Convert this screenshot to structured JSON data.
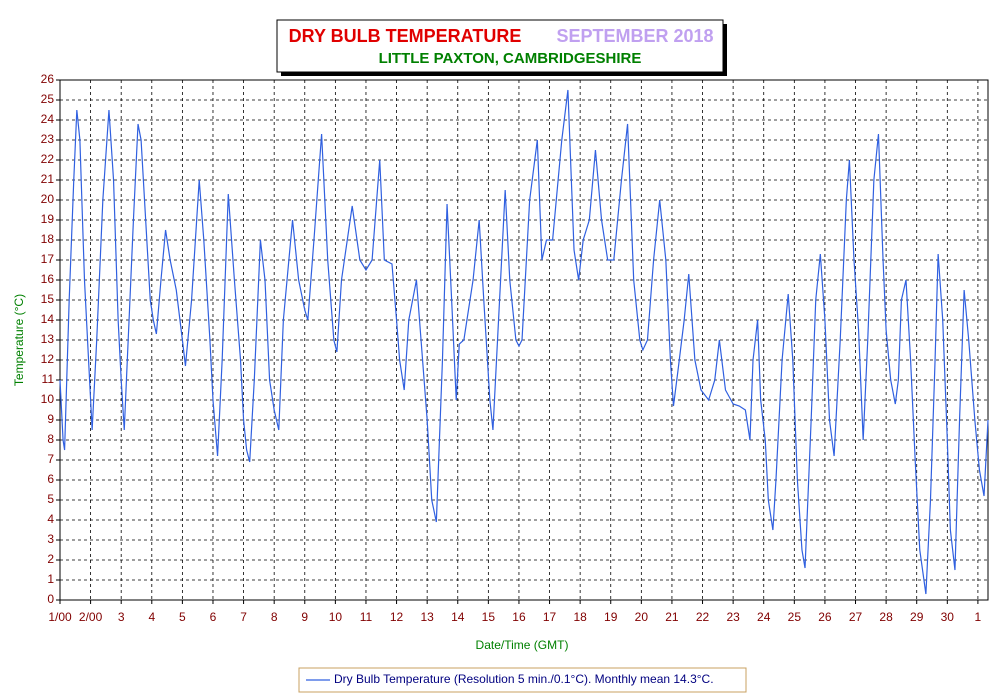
{
  "chart_data": {
    "type": "line",
    "title": "DRY BULB TEMPERATURE",
    "title_color": "#e00000",
    "title_date": "SEPTEMBER 2018",
    "title_date_color": "#c0a0f0",
    "subtitle": "LITTLE PAXTON, CAMBRIDGESHIRE",
    "subtitle_color": "#008000",
    "xlabel": "Date/Time (GMT)",
    "ylabel": "Temperature (°C)",
    "grid": true,
    "legend": "bottom",
    "xlim": [
      0,
      30.33
    ],
    "ylim": [
      0,
      26
    ],
    "yticks": [
      0,
      1,
      2,
      3,
      4,
      5,
      6,
      7,
      8,
      9,
      10,
      11,
      12,
      13,
      14,
      15,
      16,
      17,
      18,
      19,
      20,
      21,
      22,
      23,
      24,
      25,
      26
    ],
    "xticks": [
      {
        "value": 0,
        "label": "1/00"
      },
      {
        "value": 1,
        "label": "2/00"
      },
      {
        "value": 2,
        "label": "3"
      },
      {
        "value": 3,
        "label": "4"
      },
      {
        "value": 4,
        "label": "5"
      },
      {
        "value": 5,
        "label": "6"
      },
      {
        "value": 6,
        "label": "7"
      },
      {
        "value": 7,
        "label": "8"
      },
      {
        "value": 8,
        "label": "9"
      },
      {
        "value": 9,
        "label": "10"
      },
      {
        "value": 10,
        "label": "11"
      },
      {
        "value": 11,
        "label": "12"
      },
      {
        "value": 12,
        "label": "13"
      },
      {
        "value": 13,
        "label": "14"
      },
      {
        "value": 14,
        "label": "15"
      },
      {
        "value": 15,
        "label": "16"
      },
      {
        "value": 16,
        "label": "17"
      },
      {
        "value": 17,
        "label": "18"
      },
      {
        "value": 18,
        "label": "19"
      },
      {
        "value": 19,
        "label": "20"
      },
      {
        "value": 20,
        "label": "21"
      },
      {
        "value": 21,
        "label": "22"
      },
      {
        "value": 22,
        "label": "23"
      },
      {
        "value": 23,
        "label": "24"
      },
      {
        "value": 24,
        "label": "25"
      },
      {
        "value": 25,
        "label": "26"
      },
      {
        "value": 26,
        "label": "27"
      },
      {
        "value": 27,
        "label": "28"
      },
      {
        "value": 28,
        "label": "29"
      },
      {
        "value": 29,
        "label": "30"
      },
      {
        "value": 30,
        "label": "1"
      }
    ],
    "x": [
      0,
      0.1,
      0.15,
      0.3,
      0.45,
      0.55,
      0.65,
      0.8,
      0.95,
      1.0,
      1.05,
      1.2,
      1.4,
      1.6,
      1.75,
      1.9,
      2.0,
      2.1,
      2.2,
      2.4,
      2.55,
      2.65,
      2.8,
      2.95,
      3.05,
      3.15,
      3.3,
      3.45,
      3.6,
      3.8,
      4.0,
      4.1,
      4.3,
      4.55,
      4.7,
      4.9,
      5.0,
      5.15,
      5.3,
      5.5,
      5.7,
      5.9,
      6.0,
      6.1,
      6.2,
      6.35,
      6.55,
      6.7,
      6.85,
      7.0,
      7.15,
      7.3,
      7.6,
      7.8,
      8.0,
      8.1,
      8.3,
      8.55,
      8.75,
      8.95,
      9.05,
      9.2,
      9.55,
      9.8,
      10.0,
      10.2,
      10.45,
      10.6,
      10.85,
      11.0,
      11.1,
      11.25,
      11.4,
      11.65,
      11.8,
      12.0,
      12.15,
      12.3,
      12.5,
      12.65,
      12.8,
      12.95,
      13.05,
      13.2,
      13.5,
      13.7,
      13.85,
      14.05,
      14.15,
      14.3,
      14.55,
      14.7,
      14.9,
      15.0,
      15.1,
      15.35,
      15.6,
      15.75,
      15.9,
      16.1,
      16.4,
      16.6,
      16.8,
      16.95,
      17.1,
      17.3,
      17.5,
      17.7,
      17.9,
      18.1,
      18.35,
      18.55,
      18.75,
      18.95,
      19.05,
      19.2,
      19.4,
      19.6,
      19.8,
      19.95,
      20.05,
      20.2,
      20.4,
      20.55,
      20.75,
      20.95,
      21.2,
      21.4,
      21.55,
      21.75,
      22.0,
      22.2,
      22.4,
      22.55,
      22.65,
      22.8,
      22.9,
      23.05,
      23.15,
      23.3,
      23.4,
      23.6,
      23.8,
      23.95,
      24.1,
      24.25,
      24.35,
      24.55,
      24.7,
      24.85,
      25.0,
      25.15,
      25.3,
      25.5,
      25.7,
      25.8,
      25.95,
      26.1,
      26.25,
      26.4,
      26.6,
      26.75,
      26.9,
      27.0,
      27.15,
      27.3,
      27.4,
      27.5,
      27.65,
      27.8,
      27.95,
      28.1,
      28.3,
      28.45,
      28.6,
      28.7,
      28.85,
      29.0,
      29.1,
      29.25,
      29.4,
      29.55,
      29.7,
      29.9,
      30.05,
      30.2,
      30.33
    ],
    "series": [
      {
        "name": "Dry Bulb Temperature (Resolution 5 min./0.1°C). Monthly mean 14.3°C.",
        "color": "#3060e0",
        "values": [
          11,
          8,
          7.5,
          15,
          21,
          24.5,
          23,
          16,
          11.5,
          10,
          8.5,
          13,
          20,
          24.5,
          21,
          14,
          11,
          8.5,
          12,
          19,
          23.8,
          23,
          19,
          15,
          14,
          13.3,
          16,
          18.5,
          17,
          15.5,
          13,
          11.7,
          15,
          21,
          18,
          13,
          10,
          7.2,
          12,
          20.3,
          16,
          12,
          9,
          7.5,
          6.9,
          11,
          18,
          16,
          11,
          9.5,
          8.5,
          14,
          19,
          16,
          14.5,
          14,
          18,
          23.3,
          17,
          13,
          12.4,
          16,
          19.7,
          17,
          16.5,
          17,
          22,
          17,
          16.8,
          14,
          12,
          10.5,
          14,
          16,
          13,
          9,
          5,
          3.9,
          12,
          19.8,
          15,
          10,
          12.8,
          13,
          16,
          19,
          15,
          10,
          8.5,
          13,
          20.5,
          16,
          13,
          12.7,
          13,
          20,
          23,
          17,
          18,
          18,
          23,
          25.5,
          17.5,
          16,
          18,
          19,
          22.5,
          19,
          17,
          17,
          21,
          23.8,
          16,
          13,
          12.5,
          13,
          17,
          20,
          17,
          12,
          9.7,
          11.5,
          14,
          16.3,
          12,
          10.5,
          10,
          11,
          13,
          10.5,
          9.8,
          9.7,
          9.5,
          8,
          12,
          14,
          10,
          8,
          5,
          3.5,
          6,
          12,
          15.3,
          12,
          6,
          2.5,
          1.6,
          9,
          15,
          17.3,
          14,
          9,
          7.2,
          13,
          20,
          22,
          17,
          13.5,
          8,
          13,
          21,
          23.3,
          17,
          13.5,
          11,
          9.8,
          11,
          15,
          16,
          12,
          7,
          2.5,
          0.3,
          5,
          12,
          17.3,
          14,
          8,
          3.5,
          1.5,
          9,
          15.5,
          13,
          9,
          6.5,
          5.2,
          9
        ]
      }
    ]
  }
}
